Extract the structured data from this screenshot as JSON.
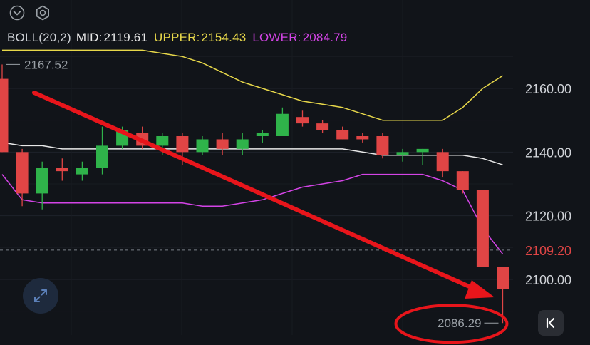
{
  "header": {
    "icons": [
      "chevron-down-icon",
      "gear-icon"
    ]
  },
  "indicator": {
    "name": "BOLL(20,2)",
    "mid_label": "MID:",
    "mid_value": "2119.61",
    "upper_label": "UPPER:",
    "upper_value": "2154.43",
    "lower_label": "LOWER:",
    "lower_value": "2084.79",
    "colors": {
      "name": "#d0d3d8",
      "mid": "#e8e8e8",
      "upper": "#e8d84a",
      "lower": "#d444e6"
    }
  },
  "chart_data": {
    "type": "candlestick",
    "y_axis": {
      "ticks": [
        2160.0,
        2140.0,
        2120.0,
        2100.0
      ],
      "labels": [
        "2160.00",
        "2140.00",
        "2120.00",
        "2100.00"
      ],
      "range": [
        2084,
        2174
      ]
    },
    "current_price": {
      "value": 2109.2,
      "label": "2109.20",
      "color": "#e04545"
    },
    "high_marker": {
      "value": 2167.52,
      "label": "2167.52"
    },
    "low_marker": {
      "value": 2086.29,
      "label": "2086.29"
    },
    "colors": {
      "up": "#2fb34a",
      "down": "#e04545",
      "annotation": "#e8151b"
    },
    "candles": [
      {
        "o": 2163,
        "h": 2167.52,
        "l": 2140,
        "c": 2140
      },
      {
        "o": 2140,
        "h": 2141,
        "l": 2123,
        "c": 2127
      },
      {
        "o": 2127,
        "h": 2137,
        "l": 2122,
        "c": 2135
      },
      {
        "o": 2135,
        "h": 2138,
        "l": 2131,
        "c": 2134
      },
      {
        "o": 2133,
        "h": 2137,
        "l": 2131,
        "c": 2135
      },
      {
        "o": 2135,
        "h": 2148,
        "l": 2133,
        "c": 2142
      },
      {
        "o": 2142,
        "h": 2148,
        "l": 2141,
        "c": 2147
      },
      {
        "o": 2146,
        "h": 2148,
        "l": 2141,
        "c": 2142
      },
      {
        "o": 2142,
        "h": 2146,
        "l": 2139,
        "c": 2145
      },
      {
        "o": 2145,
        "h": 2146,
        "l": 2136,
        "c": 2140
      },
      {
        "o": 2140,
        "h": 2145,
        "l": 2139,
        "c": 2144
      },
      {
        "o": 2144,
        "h": 2146,
        "l": 2139,
        "c": 2141
      },
      {
        "o": 2141,
        "h": 2146,
        "l": 2139,
        "c": 2144
      },
      {
        "o": 2145,
        "h": 2147,
        "l": 2143,
        "c": 2146
      },
      {
        "o": 2145,
        "h": 2154,
        "l": 2145,
        "c": 2152
      },
      {
        "o": 2151,
        "h": 2153,
        "l": 2148,
        "c": 2149
      },
      {
        "o": 2149,
        "h": 2150,
        "l": 2146,
        "c": 2147
      },
      {
        "o": 2147,
        "h": 2148,
        "l": 2144,
        "c": 2144
      },
      {
        "o": 2145,
        "h": 2146,
        "l": 2143,
        "c": 2144
      },
      {
        "o": 2145,
        "h": 2146,
        "l": 2138,
        "c": 2139
      },
      {
        "o": 2139,
        "h": 2141,
        "l": 2137,
        "c": 2140
      },
      {
        "o": 2140,
        "h": 2141,
        "l": 2136,
        "c": 2141
      },
      {
        "o": 2140,
        "h": 2141,
        "l": 2132,
        "c": 2134
      },
      {
        "o": 2134,
        "h": 2134,
        "l": 2127,
        "c": 2128
      },
      {
        "o": 2128,
        "h": 2128,
        "l": 2104,
        "c": 2104
      },
      {
        "o": 2104,
        "h": 2104,
        "l": 2086.29,
        "c": 2097
      }
    ],
    "boll_upper": [
      2172,
      2172,
      2172,
      2172,
      2172,
      2172,
      2172,
      2172,
      2171,
      2170,
      2168,
      2165,
      2162,
      2160,
      2158,
      2156,
      2155,
      2154,
      2152,
      2150,
      2150,
      2150,
      2150,
      2154,
      2160,
      2164
    ],
    "boll_mid": [
      2143,
      2142,
      2142,
      2141,
      2141,
      2141,
      2141,
      2141,
      2141,
      2141,
      2141,
      2141,
      2141,
      2141,
      2141,
      2141,
      2141,
      2141,
      2140,
      2139,
      2139,
      2139,
      2139,
      2139,
      2138,
      2136
    ],
    "boll_lower": [
      2133,
      2125,
      2124,
      2124,
      2124,
      2124,
      2124,
      2124,
      2124,
      2124,
      2123,
      2123,
      2124,
      2125,
      2127,
      2129,
      2130,
      2131,
      2133,
      2133,
      2133,
      2133,
      2131,
      2128,
      2116,
      2108
    ]
  }
}
